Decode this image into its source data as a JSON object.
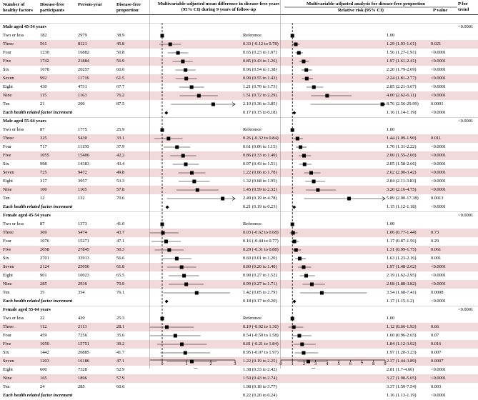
{
  "headers": {
    "factors": "Number of healthy factors",
    "participants": "Disease-free participants",
    "person_year": "Person-year",
    "proportion": "Disease-free proportion",
    "panel1": "Multivariable-adjusted mean difference in disease-free years (95% CI) during 9 years of follow-up",
    "panel1_sup": "a",
    "panel2": "Multivariable-adjusted analysis for disease-free proportion",
    "panel2_sup": "b",
    "rr": "Relative risk (95% CI)",
    "pvalue": "P value",
    "ptrend": "P for trend"
  },
  "axis1_ticks": [
    "0",
    "1",
    "2",
    "3"
  ],
  "axis2_ticks": [
    "0",
    "1",
    "2",
    "3",
    "4",
    "5",
    "6",
    "7",
    "8",
    "9"
  ],
  "chart_data": {
    "type": "forest",
    "panels": [
      {
        "name": "Mean difference in disease-free years",
        "xlim": [
          -0.5,
          3.0
        ],
        "reference": 0
      },
      {
        "name": "Relative risk",
        "xlim": [
          0,
          9
        ],
        "reference": 1
      }
    ],
    "groups": [
      {
        "title": "Male aged 45-54 years",
        "p_trend": "<0.0001",
        "rows": [
          {
            "label": "Two or less",
            "n": "182",
            "py": "2979",
            "prop": "38.9",
            "md": 0,
            "md_lo": null,
            "md_hi": null,
            "md_text": "Reference",
            "rr": 1.0,
            "rr_lo": null,
            "rr_hi": null,
            "rr_text": "1.00",
            "p": ""
          },
          {
            "label": "Three",
            "n": "561",
            "py": "8121",
            "prop": "45.8",
            "md": 0.33,
            "md_lo": -0.12,
            "md_hi": 0.78,
            "md_text": "0.33 (-0.12 to 0.78)",
            "rr": 1.29,
            "rr_lo": 1.03,
            "rr_hi": 1.61,
            "rr_text": "1.29 (1.03-1.61)",
            "p": "0.021"
          },
          {
            "label": "Four",
            "n": "1230",
            "py": "16882",
            "prop": "50.8",
            "md": 0.65,
            "md_lo": 0.23,
            "md_hi": 1.07,
            "md_text": "0.65 (0.23 to 1.07)",
            "rr": 1.56,
            "rr_lo": 1.27,
            "rr_hi": 1.91,
            "rr_text": "1.56 (1.27-1.91)",
            "p": "<0.0001"
          },
          {
            "label": "Five",
            "n": "1742",
            "py": "21884",
            "prop": "56.9",
            "md": 0.85,
            "md_lo": 0.43,
            "md_hi": 1.26,
            "md_text": "0.85 (0.43 to 1.26)",
            "rr": 1.97,
            "rr_lo": 1.61,
            "rr_hi": 2.41,
            "rr_text": "1.97 (1.61-2.41)",
            "p": "<0.0001"
          },
          {
            "label": "Six",
            "n": "1678",
            "py": "20257",
            "prop": "60.0",
            "md": 0.96,
            "md_lo": 0.54,
            "md_hi": 1.38,
            "md_text": "0.96 (0.54 to 1.38)",
            "rr": 2.2,
            "rr_lo": 1.79,
            "rr_hi": 2.69,
            "rr_text": "2.20 (1.79-2.69)",
            "p": "<0.0001"
          },
          {
            "label": "Seven",
            "n": "992",
            "py": "11716",
            "prop": "61.5",
            "md": 0.99,
            "md_lo": 0.55,
            "md_hi": 1.43,
            "md_text": "0.99 (0.55 to 1.43)",
            "rr": 2.24,
            "rr_lo": 1.81,
            "rr_hi": 2.77,
            "rr_text": "2.24 (1.81-2.77)",
            "p": "<0.0001"
          },
          {
            "label": "Eight",
            "n": "430",
            "py": "4731",
            "prop": "67.7",
            "md": 1.21,
            "md_lo": 0.7,
            "md_hi": 1.73,
            "md_text": "1.21 (0.70 to 1.73)",
            "rr": 2.85,
            "rr_lo": 2.21,
            "rr_hi": 3.67,
            "rr_text": "2.85 (2.21-3.67)",
            "p": "<0.0001"
          },
          {
            "label": "Nine",
            "n": "115",
            "py": "1163",
            "prop": "76.2",
            "md": 1.51,
            "md_lo": 0.72,
            "md_hi": 2.29,
            "md_text": "1.51 (0.72 to 2.29)",
            "rr": 4.0,
            "rr_lo": 2.62,
            "rr_hi": 6.11,
            "rr_text": "4.00 (2.62-6.11)",
            "p": "<0.0001"
          },
          {
            "label": "Ten",
            "n": "21",
            "py": "200",
            "prop": "87.5",
            "md": 2.1,
            "md_lo": 0.36,
            "md_hi": 3.85,
            "md_text": "2.10 (0.36 to 3.85)",
            "rr": 8.76,
            "rr_lo": 2.56,
            "rr_hi": 29.99,
            "rr_text": "8.76 (2.56-29.99)",
            "p": "0.0001"
          }
        ],
        "increment": {
          "label": "Each health related factor increment",
          "md": 0.17,
          "md_lo": 0.15,
          "md_hi": 0.18,
          "md_text": "0.17 (0.15 to 0.18)",
          "rr": 1.16,
          "rr_lo": 1.14,
          "rr_hi": 1.19,
          "rr_text": "1.16 (1.14-1.19)",
          "p": "<0.0001"
        }
      },
      {
        "title": "Male aged 55-64 years",
        "p_trend": "<0.0001",
        "rows": [
          {
            "label": "Two or less",
            "n": "87",
            "py": "1775",
            "prop": "25.9",
            "md": 0,
            "md_lo": null,
            "md_hi": null,
            "md_text": "Reference",
            "rr": 1.0,
            "rr_lo": null,
            "rr_hi": null,
            "rr_text": "1.00",
            "p": ""
          },
          {
            "label": "Three",
            "n": "325",
            "py": "5430",
            "prop": "33.1",
            "md": 0.26,
            "md_lo": -0.32,
            "md_hi": 0.84,
            "md_text": "0.26 (-0.32 to 0.84)",
            "rr": 1.44,
            "rr_lo": 1.09,
            "rr_hi": 1.9,
            "rr_text": "1.44 (1.09-1.90)",
            "p": "0.011"
          },
          {
            "label": "Four",
            "n": "717",
            "py": "11150",
            "prop": "37.9",
            "md": 0.61,
            "md_lo": 0.06,
            "md_hi": 1.15,
            "md_text": "0.61 (0.06 to 1.15)",
            "rr": 1.7,
            "rr_lo": 1.31,
            "rr_hi": 2.22,
            "rr_text": "1.70 (1.31-2.22)",
            "p": "<0.0001"
          },
          {
            "label": "Five",
            "n": "1055",
            "py": "15406",
            "prop": "42.2",
            "md": 0.86,
            "md_lo": 0.33,
            "md_hi": 1.4,
            "md_text": "0.86 (0.33 to 1.40)",
            "rr": 2.0,
            "rr_lo": 1.55,
            "rr_hi": 2.6,
            "rr_text": "2.00 (1.55-2.60)",
            "p": "<0.0001"
          },
          {
            "label": "Six",
            "n": "998",
            "py": "14383",
            "prop": "43.4",
            "md": 0.97,
            "md_lo": 0.43,
            "md_hi": 1.51,
            "md_text": "0.97 (0.43 to 1.51)",
            "rr": 2.05,
            "rr_lo": 1.58,
            "rr_hi": 2.66,
            "rr_text": "2.05 (1.58-2.66)",
            "p": "<0.0001"
          },
          {
            "label": "Seven",
            "n": "725",
            "py": "9472",
            "prop": "49.8",
            "md": 1.22,
            "md_lo": 0.66,
            "md_hi": 1.78,
            "md_text": "1.22 (0.66 to 1.78)",
            "rr": 2.62,
            "rr_lo": 2.0,
            "rr_hi": 3.42,
            "rr_text": "2.62 (2.00-3.42)",
            "p": "<0.0001"
          },
          {
            "label": "Eight",
            "n": "317",
            "py": "3957",
            "prop": "53.3",
            "md": 1.32,
            "md_lo": 0.68,
            "md_hi": 1.95,
            "md_text": "1.32 (0.68 to 1.95)",
            "rr": 2.84,
            "rr_lo": 2.11,
            "rr_hi": 3.83,
            "rr_text": "2.84 (2.11-3.83)",
            "p": "<0.0001"
          },
          {
            "label": "Nine",
            "n": "100",
            "py": "1165",
            "prop": "57.8",
            "md": 1.45,
            "md_lo": 0.59,
            "md_hi": 2.32,
            "md_text": "1.45 (0.59 to 2.32)",
            "rr": 3.2,
            "rr_lo": 2.16,
            "rr_hi": 4.75,
            "rr_text": "3.20 (2.16-4.75)",
            "p": "<0.0001"
          },
          {
            "label": "Ten",
            "n": "12",
            "py": "132",
            "prop": "70.6",
            "md": 2.49,
            "md_lo": 0.19,
            "md_hi": 4.78,
            "md_text": "2.49 (0.19 to 4.78)",
            "rr": 5.89,
            "rr_lo": 2.0,
            "rr_hi": 17.38,
            "rr_text": "5.89 (2.00-17.38)",
            "p": "0.0013"
          }
        ],
        "increment": {
          "label": "Each health related factor increment",
          "md": 0.21,
          "md_lo": 0.19,
          "md_hi": 0.23,
          "md_text": "0.21 (0.19 to 0.23)",
          "rr": 1.15,
          "rr_lo": 1.12,
          "rr_hi": 1.18,
          "rr_text": "1.15 (1.12-1.18)",
          "p": "<0.0001"
        }
      },
      {
        "title": "Female aged 45-54 years",
        "p_trend": "<0.0001",
        "rows": [
          {
            "label": "Two or less",
            "n": "87",
            "py": "1373",
            "prop": "41.0",
            "md": 0,
            "md_lo": null,
            "md_hi": null,
            "md_text": "Reference",
            "rr": 1.0,
            "rr_lo": null,
            "rr_hi": null,
            "rr_text": "1.00",
            "p": ""
          },
          {
            "label": "Three",
            "n": "369",
            "py": "5474",
            "prop": "43.7",
            "md": 0.03,
            "md_lo": -0.62,
            "md_hi": 0.68,
            "md_text": "0.03 (-0.62 to 0.68)",
            "rr": 1.06,
            "rr_lo": 0.77,
            "rr_hi": 1.44,
            "rr_text": "1.06 (0.77-1.44)",
            "p": "0.73"
          },
          {
            "label": "Four",
            "n": "1076",
            "py": "15271",
            "prop": "47.1",
            "md": 0.16,
            "md_lo": -0.44,
            "md_hi": 0.77,
            "md_text": "0.16 (-0.44 to 0.77)",
            "rr": 1.17,
            "rr_lo": 0.87,
            "rr_hi": 1.56,
            "rr_text": "1.17 (0.87-1.56)",
            "p": "0.29"
          },
          {
            "label": "Five",
            "n": "2058",
            "py": "27845",
            "prop": "50.3",
            "md": 0.29,
            "md_lo": -0.31,
            "md_hi": 0.88,
            "md_text": "0.29 (-0.31 to 0.88)",
            "rr": 1.31,
            "rr_lo": 0.99,
            "rr_hi": 1.75,
            "rr_text": "1.31 (0.99-1.75)",
            "p": "0.061"
          },
          {
            "label": "Six",
            "n": "2701",
            "py": "33913",
            "prop": "56.6",
            "md": 0.6,
            "md_lo": 0.01,
            "md_hi": 1.2,
            "md_text": "0.60 (0.01 to 1.20)",
            "rr": 1.63,
            "rr_lo": 1.23,
            "rr_hi": 2.16,
            "rr_text": "1.63 (1.23-2.16)",
            "p": "0.001"
          },
          {
            "label": "Seven",
            "n": "2124",
            "py": "25056",
            "prop": "61.8",
            "md": 0.8,
            "md_lo": 0.2,
            "md_hi": 1.4,
            "md_text": "0.80 (0.20 to 1.40)",
            "rr": 1.97,
            "rr_lo": 1.48,
            "rr_hi": 2.62,
            "rr_text": "1.97 (1.48-2.62)",
            "p": "<0.0001"
          },
          {
            "label": "Eight",
            "n": "901",
            "py": "10023",
            "prop": "65.5",
            "md": 0.9,
            "md_lo": 0.27,
            "md_hi": 1.52,
            "md_text": "0.90 (0.27 to 1.52)",
            "rr": 2.19,
            "rr_lo": 1.62,
            "rr_hi": 2.95,
            "rr_text": "2.19 (1.62-2.95)",
            "p": "<0.0001"
          },
          {
            "label": "Nine",
            "n": "285",
            "py": "2936",
            "prop": "70.9",
            "md": 0.99,
            "md_lo": 0.27,
            "md_hi": 1.71,
            "md_text": "0.99 (0.27 to 1.71)",
            "rr": 2.68,
            "rr_lo": 1.88,
            "rr_hi": 3.82,
            "rr_text": "2.68 (1.88-3.82)",
            "p": "<0.0001"
          },
          {
            "label": "Ten",
            "n": "35",
            "py": "354",
            "prop": "76.1",
            "md": 1.42,
            "md_lo": 0.05,
            "md_hi": 2.79,
            "md_text": "1.42 (0.05 to 2.79)",
            "rr": 3.54,
            "rr_lo": 1.68,
            "rr_hi": 7.41,
            "rr_text": "3.54 (1.68-7.41)",
            "p": "0.0008"
          }
        ],
        "increment": {
          "label": "Each health related factor increment",
          "md": 0.18,
          "md_lo": 0.17,
          "md_hi": 0.2,
          "md_text": "0.18 (0.17 to 0.20)",
          "rr": 1.17,
          "rr_lo": 1.15,
          "rr_hi": 1.2,
          "rr_text": "1.17 (1.15-1.2)",
          "p": "<0.0001"
        }
      },
      {
        "title": "Female aged 55-64 years",
        "p_trend": "<0.0001",
        "rows": [
          {
            "label": "Two or less",
            "n": "22",
            "py": "439",
            "prop": "25.3",
            "md": 0,
            "md_lo": null,
            "md_hi": null,
            "md_text": "Reference",
            "rr": 1.0,
            "rr_lo": null,
            "rr_hi": null,
            "rr_text": "1.00",
            "p": ""
          },
          {
            "label": "Three",
            "n": "112",
            "py": "2113",
            "prop": "28.1",
            "md": 0.19,
            "md_lo": -0.92,
            "md_hi": 1.3,
            "md_text": "0.19 (-0.92 to 1.30)",
            "rr": 1.12,
            "rr_lo": 0.66,
            "rr_hi": 1.93,
            "rr_text": "1.12 (0.66-1.93)",
            "p": "0.66"
          },
          {
            "label": "Four",
            "n": "459",
            "py": "7256",
            "prop": "35.6",
            "md": 0.54,
            "md_lo": -0.5,
            "md_hi": 1.58,
            "md_text": "0.54 (-0.50 to 1.58)",
            "rr": 1.6,
            "rr_lo": 0.96,
            "rr_hi": 2.65,
            "rr_text": "1.60 (0.96-2.65)",
            "p": "0.07"
          },
          {
            "label": "Five",
            "n": "1050",
            "py": "15751",
            "prop": "39.2",
            "md": 0.81,
            "md_lo": -0.21,
            "md_hi": 1.84,
            "md_text": "0.81 (-0.21 to 1.84)",
            "rr": 1.84,
            "rr_lo": 1.12,
            "rr_hi": 3.02,
            "rr_text": "1.84 (1.12-3.02)",
            "p": "0.016"
          },
          {
            "label": "Six",
            "n": "1442",
            "py": "20885",
            "prop": "41.7",
            "md": 0.95,
            "md_lo": -0.07,
            "md_hi": 1.97,
            "md_text": "0.95 (-0.07 to 1.97)",
            "rr": 1.97,
            "rr_lo": 1.2,
            "rr_hi": 3.23,
            "rr_text": "1.97 (1.20-3.23)",
            "p": "0.007"
          },
          {
            "label": "Seven",
            "n": "1203",
            "py": "16186",
            "prop": "47.1",
            "md": 1.22,
            "md_lo": 0.19,
            "md_hi": 2.25,
            "md_text": "1.22 (0.19 to 2.25)",
            "rr": 2.37,
            "rr_lo": 1.44,
            "rr_hi": 3.89,
            "rr_text": "2.37 (1.44-3.89)",
            "p": "0.0007"
          },
          {
            "label": "Eight",
            "n": "600",
            "py": "7328",
            "prop": "52.9",
            "md": 1.38,
            "md_lo": 0.33,
            "md_hi": 2.42,
            "md_text": "1.38 (0.33 to 2.42)",
            "rr": 2.81,
            "rr_lo": 1.7,
            "rr_hi": 4.66,
            "rr_text": "2.81 (1.7-4.66)",
            "p": "<0.0001"
          },
          {
            "label": "Nine",
            "n": "165",
            "py": "1896",
            "prop": "57.9",
            "md": 1.59,
            "md_lo": 0.43,
            "md_hi": 2.74,
            "md_text": "1.59 (0.43 to 2.74)",
            "rr": 3.27,
            "rr_lo": 1.9,
            "rr_hi": 5.65,
            "rr_text": "3.27 (1.90-5.65)",
            "p": "<0.0001"
          },
          {
            "label": "Ten",
            "n": "24",
            "py": "285",
            "prop": "60.0",
            "md": 1.98,
            "md_lo": 0.18,
            "md_hi": 3.77,
            "md_text": "1.98 (0.18 to 3.77)",
            "rr": 3.37,
            "rr_lo": 1.5,
            "rr_hi": 7.54,
            "rr_text": "3.37 (1.50-7.54)",
            "p": "0.003"
          }
        ],
        "increment": {
          "label": "Each health related factor increment",
          "md": 0.22,
          "md_lo": 0.2,
          "md_hi": 0.24,
          "md_text": "0.22 (0.20 to 0.24)",
          "rr": 1.16,
          "rr_lo": 1.13,
          "rr_hi": 1.19,
          "rr_text": "1.16 (1.13-1.19)",
          "p": "<0.0001"
        }
      }
    ]
  }
}
